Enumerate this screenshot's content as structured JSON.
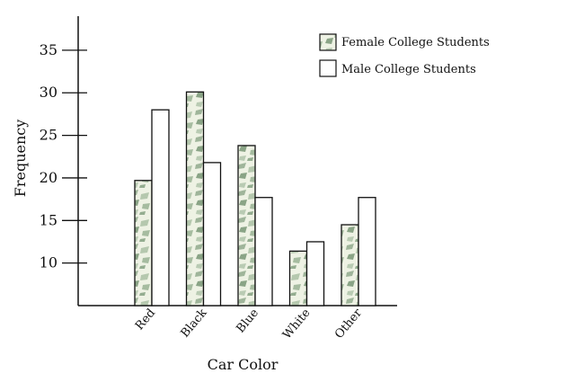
{
  "chart_data": {
    "type": "bar",
    "title": "",
    "xlabel": "Car Color",
    "ylabel": "Frequency",
    "categories": [
      "Red",
      "Black",
      "Blue",
      "White",
      "Other"
    ],
    "series": [
      {
        "name": "Female College Students",
        "values": [
          19.7,
          30.1,
          23.8,
          11.4,
          14.5
        ],
        "fill": "camouflage-green"
      },
      {
        "name": "Male College Students",
        "values": [
          28.0,
          21.8,
          17.7,
          12.5,
          17.7
        ],
        "fill": "#ffffff"
      }
    ],
    "ylim": [
      5,
      39
    ],
    "yticks": [
      10,
      15,
      20,
      25,
      30,
      35
    ],
    "grid": false,
    "legend": "top-right"
  }
}
